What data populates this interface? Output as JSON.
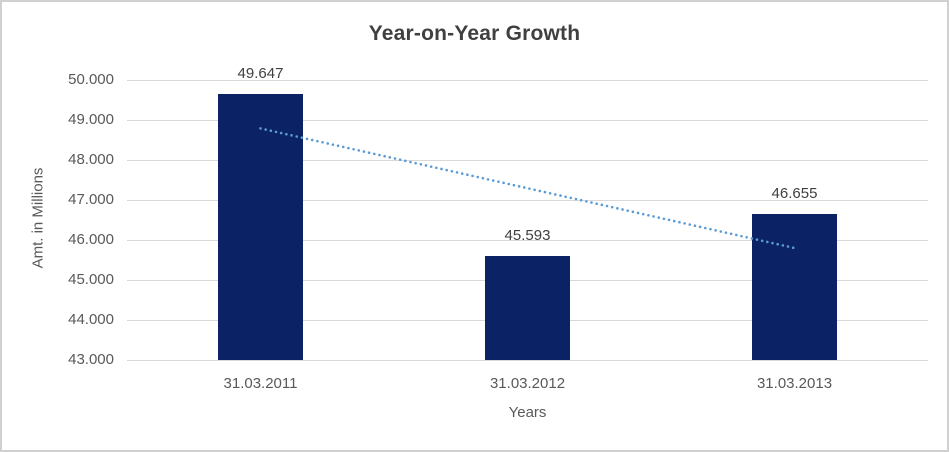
{
  "chart_data": {
    "type": "bar",
    "title": "Year-on-Year Growth",
    "xlabel": "Years",
    "ylabel": "Amt. in Millions",
    "categories": [
      "31.03.2011",
      "31.03.2012",
      "31.03.2013"
    ],
    "values": [
      49.647,
      45.593,
      46.655
    ],
    "value_labels": [
      "49.647",
      "45.593",
      "46.655"
    ],
    "yticks": [
      "50.000",
      "49.000",
      "48.000",
      "47.000",
      "46.000",
      "45.000",
      "44.000",
      "43.000"
    ],
    "ytick_values": [
      50,
      49,
      48,
      47,
      46,
      45,
      44,
      43
    ],
    "ylim": [
      43,
      50
    ],
    "grid": "horizontal",
    "legend": "none",
    "trendline": {
      "type": "linear",
      "style": "dotted",
      "start_value": 48.79,
      "end_value": 45.8
    }
  },
  "colors": {
    "bar": "#0b2365",
    "trendline": "#5b9bd5",
    "gridline": "#d9d9d9",
    "axis_text": "#595959",
    "title_text": "#404040",
    "value_label_text": "#404040",
    "background": "#ffffff",
    "frame_border": "#d0d0d0"
  }
}
